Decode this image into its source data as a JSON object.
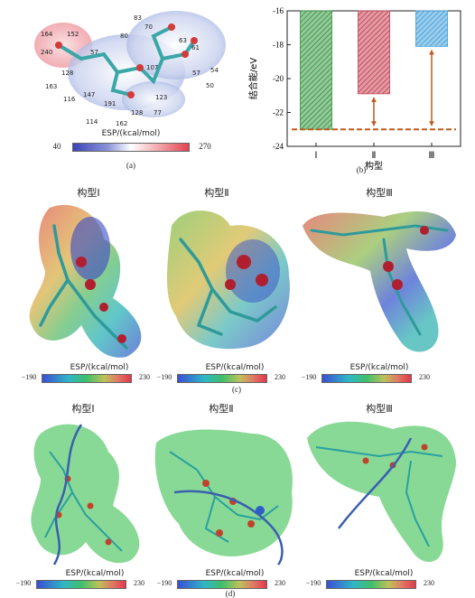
{
  "panel_a": {
    "esp_labels": [
      "164",
      "152",
      "240",
      "57",
      "83",
      "70",
      "80",
      "63",
      "61",
      "54",
      "128",
      "163",
      "116",
      "147",
      "191",
      "107",
      "123",
      "50",
      "128",
      "77",
      "114",
      "162",
      "57"
    ],
    "colorbar_title": "ESP/(kcal/mol)",
    "colorbar_min": "40",
    "colorbar_max": "270",
    "caption": "(a)"
  },
  "panel_b": {
    "caption": "(b)",
    "chart_data": {
      "type": "bar",
      "categories": [
        "Ⅰ",
        "Ⅱ",
        "Ⅲ"
      ],
      "values": [
        -23.0,
        -20.9,
        -18.1
      ],
      "colors": [
        "#3f9a4a",
        "#c84a5a",
        "#4aa3db"
      ],
      "reference_line": -23.0,
      "xlabel": "构型",
      "ylabel": "结合能/eV",
      "ylim": [
        -24,
        -16
      ],
      "yticks": [
        "-16",
        "-18",
        "-20",
        "-22",
        "-24"
      ]
    }
  },
  "panel_c": {
    "titles": [
      "构型Ⅰ",
      "构型Ⅱ",
      "构型Ⅲ"
    ],
    "colorbar_title": "ESP/(kcal/mol)",
    "colorbar_min": "−190",
    "colorbar_max": "230",
    "caption": "(c)"
  },
  "panel_d": {
    "titles": [
      "构型Ⅰ",
      "构型Ⅱ",
      "构型Ⅲ"
    ],
    "colorbar_title": "ESP/(kcal/mol)",
    "colorbar_min": "−190",
    "colorbar_max": "230",
    "caption": "(d)"
  }
}
